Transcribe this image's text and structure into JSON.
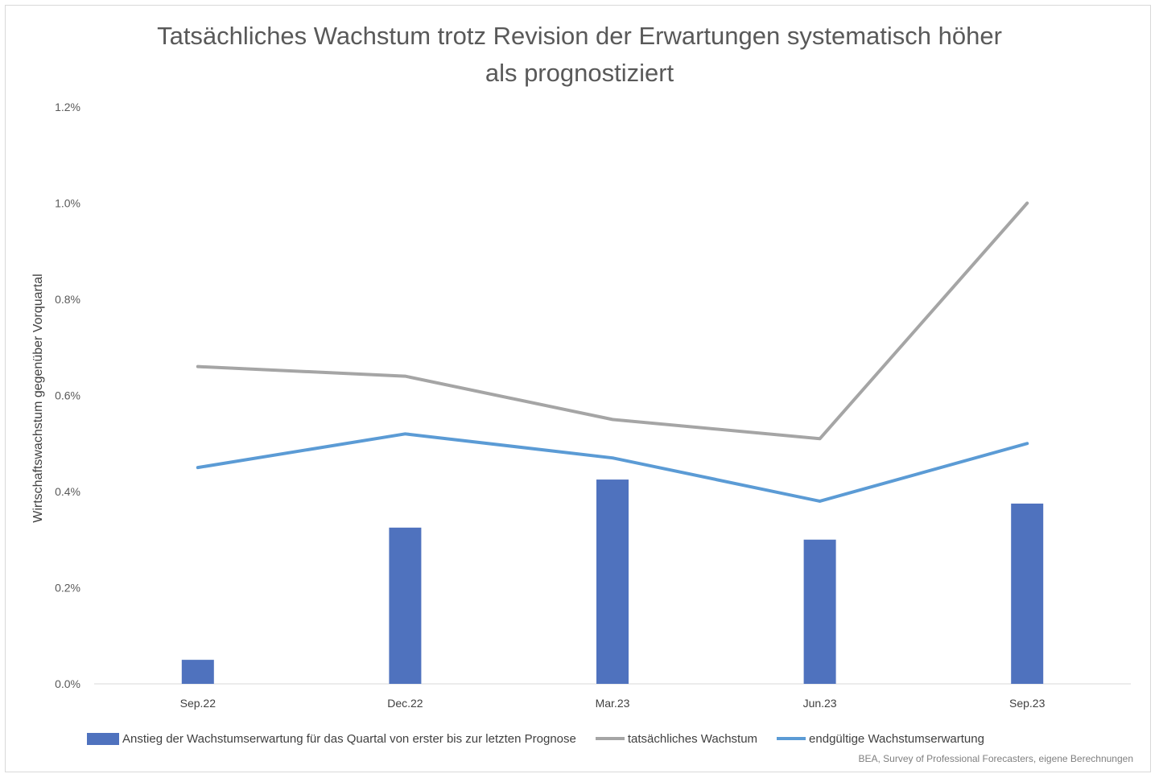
{
  "chart_data": {
    "type": "bar",
    "title_lines": [
      "Tatsächliches Wachstum trotz Revision der Erwartungen systematisch höher",
      "als prognostiziert"
    ],
    "ylabel": "Wirtschaftswachstum gegenüber Vorquartal",
    "xlabel": "",
    "categories": [
      "Sep.22",
      "Dec.22",
      "Mar.23",
      "Jun.23",
      "Sep.23"
    ],
    "ylim": [
      0,
      1.2
    ],
    "yticks": [
      "0.0%",
      "0.2%",
      "0.4%",
      "0.6%",
      "0.8%",
      "1.0%",
      "1.2%"
    ],
    "ytick_values": [
      0,
      0.2,
      0.4,
      0.6,
      0.8,
      1.0,
      1.2
    ],
    "grid": false,
    "legend_position": "bottom",
    "series": [
      {
        "name": "Anstieg der Wachstumserwartung für das Quartal von erster bis zur letzten Prognose",
        "kind": "bar",
        "color": "#4f72be",
        "values": [
          0.05,
          0.325,
          0.425,
          0.3,
          0.375
        ]
      },
      {
        "name": "tatsächliches Wachstum",
        "kind": "line",
        "color": "#a5a5a5",
        "values": [
          0.66,
          0.64,
          0.55,
          0.51,
          1.0
        ]
      },
      {
        "name": "endgültige Wachstumserwartung",
        "kind": "line",
        "color": "#5b9bd5",
        "values": [
          0.45,
          0.52,
          0.47,
          0.38,
          0.5
        ]
      }
    ],
    "source": "BEA, Survey of Professional Forecasters, eigene Berechnungen"
  }
}
